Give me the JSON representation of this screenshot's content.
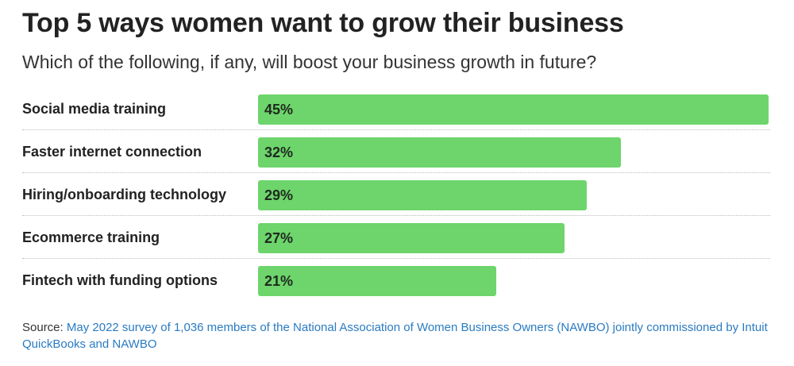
{
  "title": "Top 5 ways women want to grow their business",
  "subtitle": "Which of the following, if any, will boost your business growth in future?",
  "source": {
    "label": "Source: ",
    "text": "May 2022 survey of 1,036 members of the National Association of Women Business Owners (NAWBO) jointly commissioned by Intuit QuickBooks and NAWBO"
  },
  "colors": {
    "bar": "#6dd56b",
    "link": "#2a7bc2"
  },
  "chart_data": {
    "type": "bar",
    "orientation": "horizontal",
    "title": "Top 5 ways women want to grow their business",
    "subtitle": "Which of the following, if any, will boost your business growth in future?",
    "categories": [
      "Social media training",
      "Faster internet connection",
      "Hiring/onboarding technology",
      "Ecommerce training",
      "Fintech with funding options"
    ],
    "values": [
      45,
      32,
      29,
      27,
      21
    ],
    "value_labels": [
      "45%",
      "32%",
      "29%",
      "27%",
      "21%"
    ],
    "xlim": [
      0,
      45
    ],
    "grid": false,
    "legend": "none"
  }
}
